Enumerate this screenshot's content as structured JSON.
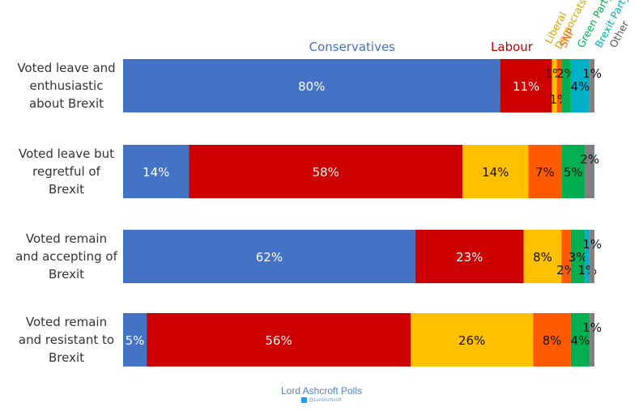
{
  "chart_data": {
    "type": "bar",
    "orientation": "horizontal",
    "stacked": true,
    "categories": [
      "Voted leave and enthusiastic about Brexit",
      "Voted leave but regretful of Brexit",
      "Voted remain and accepting of Brexit",
      "Voted remain and resistant to Brexit"
    ],
    "category_lines": [
      [
        "Voted leave and",
        "enthusiastic",
        "about Brexit"
      ],
      [
        "Voted leave but",
        "regretful of",
        "Brexit"
      ],
      [
        "Voted remain",
        "and accepting of",
        "Brexit"
      ],
      [
        "Voted remain",
        "and resistant to",
        "Brexit"
      ]
    ],
    "series": [
      {
        "name": "Conservatives",
        "color": "#4472c4",
        "values": [
          80,
          14,
          62,
          5
        ]
      },
      {
        "name": "Labour",
        "color": "#cc0000",
        "values": [
          11,
          58,
          23,
          56
        ]
      },
      {
        "name": "Liberal Democrats",
        "color": "#ffc000",
        "values": [
          1,
          14,
          8,
          26
        ]
      },
      {
        "name": "SNP",
        "color": "#ff5a00",
        "values": [
          1,
          7,
          2,
          8
        ]
      },
      {
        "name": "Green Party",
        "color": "#00b050",
        "values": [
          2,
          5,
          3,
          4
        ]
      },
      {
        "name": "Brexit Party",
        "color": "#00b0c8",
        "values": [
          4,
          0,
          1,
          0
        ]
      },
      {
        "name": "Other",
        "color": "#808080",
        "values": [
          1,
          2,
          1,
          1
        ]
      }
    ],
    "legend_labels": [
      {
        "lines": [
          "Conservatives"
        ],
        "color": "#4472c4"
      },
      {
        "lines": [
          "Labour"
        ],
        "color": "#c00000"
      },
      {
        "lines": [
          "Liberal",
          "Democrats"
        ],
        "color": "#e0a000"
      },
      {
        "lines": [
          "SNP"
        ],
        "color": "#ff5a00"
      },
      {
        "lines": [
          "Green Party"
        ],
        "color": "#00b050"
      },
      {
        "lines": [
          "Brexit Party"
        ],
        "color": "#00b0c8"
      },
      {
        "lines": [
          "Other"
        ],
        "color": "#555555"
      }
    ],
    "legend_placement": "top, labels above segments",
    "xlim": [
      0,
      100
    ],
    "grid": false
  },
  "footer": {
    "brand": "Lord Ashcroft Polls",
    "handle": "@LordAshcroft"
  }
}
